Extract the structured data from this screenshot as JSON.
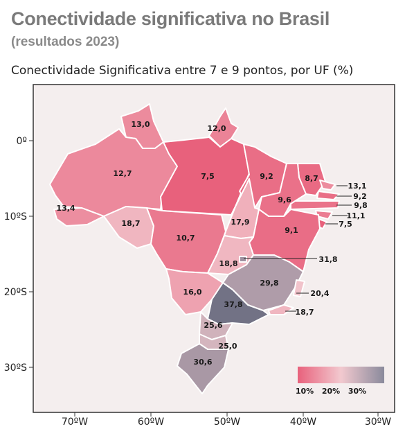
{
  "title": "Conectividade significativa no Brasil",
  "subtitle": "(resultados 2023)",
  "caption": "Conectividade Significativa entre 7 e 9 pontos, por UF (%)",
  "axes": {
    "lat_labels": [
      "0º",
      "10ºS",
      "20ºS",
      "30ºS"
    ],
    "lon_labels": [
      "70ºW",
      "60ºW",
      "50ºW",
      "40ºW",
      "30ºW"
    ]
  },
  "legend": {
    "labels": [
      "10%",
      "20%",
      "30%"
    ],
    "colors": [
      "#e8617c",
      "#f2c9cf",
      "#8a8a9c"
    ]
  },
  "colors": {
    "frame_bg": "#f4eeee",
    "low": "#e8617c",
    "mid": "#f0bcc4",
    "high": "#727285",
    "border": "#ffffff"
  },
  "map_data": {
    "type": "choropleth",
    "regions": [
      {
        "id": "RR",
        "value": "13,0"
      },
      {
        "id": "AP",
        "value": "12,0"
      },
      {
        "id": "AM",
        "value": "12,7"
      },
      {
        "id": "PA",
        "value": "7,5"
      },
      {
        "id": "MA",
        "value": "9,2"
      },
      {
        "id": "CE",
        "value": "8,7"
      },
      {
        "id": "RN",
        "value": "13,1"
      },
      {
        "id": "PB",
        "value": "9,2"
      },
      {
        "id": "PE",
        "value": "9,8"
      },
      {
        "id": "AL",
        "value": "11,1"
      },
      {
        "id": "SE",
        "value": "7,5"
      },
      {
        "id": "PI",
        "value": "9,6"
      },
      {
        "id": "AC",
        "value": "13,4"
      },
      {
        "id": "RO",
        "value": "18,7"
      },
      {
        "id": "MT",
        "value": "10,7"
      },
      {
        "id": "TO",
        "value": "17,9"
      },
      {
        "id": "BA",
        "value": "9,1"
      },
      {
        "id": "GO",
        "value": "18,8"
      },
      {
        "id": "DF",
        "value": "31,8"
      },
      {
        "id": "MG",
        "value": "29,8"
      },
      {
        "id": "ES",
        "value": "20,4"
      },
      {
        "id": "RJ",
        "value": "18,7"
      },
      {
        "id": "MS",
        "value": "16,0"
      },
      {
        "id": "SP",
        "value": "37,8"
      },
      {
        "id": "PR",
        "value": "25,6"
      },
      {
        "id": "SC",
        "value": "25,0"
      },
      {
        "id": "RS",
        "value": "30,6"
      }
    ]
  }
}
